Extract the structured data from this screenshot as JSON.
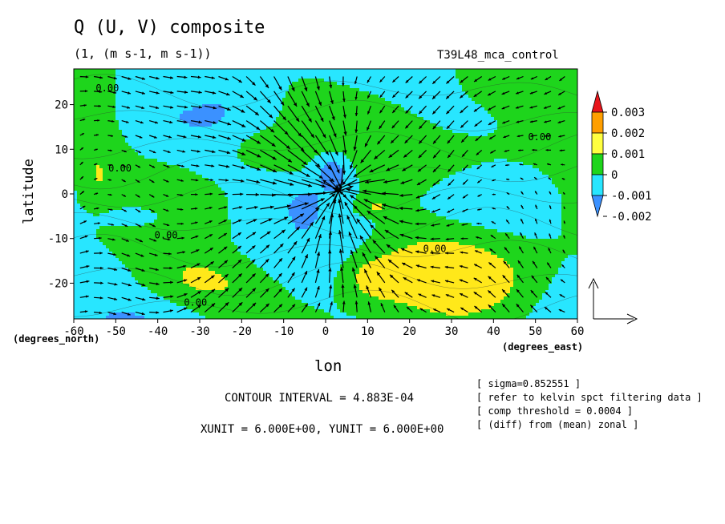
{
  "chart_data": {
    "type": "contour-vector",
    "title": "Q (U, V) composite",
    "subtitle": "(1, (m s-1, m s-1))",
    "run_label": "T39L48_mca_control",
    "xlabel": "lon",
    "ylabel": "latitude",
    "x_units_label": "(degrees_east)",
    "y_units_label": "(degrees_north)",
    "xlim": [
      -60,
      60
    ],
    "ylim": [
      -28,
      28
    ],
    "x_ticks": [
      "-60",
      "-50",
      "-40",
      "-30",
      "-20",
      "-10",
      "0",
      "10",
      "20",
      "30",
      "40",
      "50",
      "60"
    ],
    "x_tick_values": [
      -60,
      -50,
      -40,
      -30,
      -20,
      -10,
      0,
      10,
      20,
      30,
      40,
      50,
      60
    ],
    "y_ticks": [
      "20",
      "10",
      "0",
      "-10",
      "-20"
    ],
    "y_tick_values": [
      20,
      10,
      0,
      -10,
      -20
    ],
    "contour_labels": [
      {
        "text": "0.00",
        "x": -52,
        "y": 23
      },
      {
        "text": "0.00",
        "x": -49,
        "y": 5
      },
      {
        "text": "0.00",
        "x": -38,
        "y": -10
      },
      {
        "text": "0.00",
        "x": -31,
        "y": -25
      },
      {
        "text": "0.00",
        "x": 26,
        "y": -13
      },
      {
        "text": "0.00",
        "x": 51,
        "y": 12
      }
    ],
    "colorbar": {
      "levels": [
        "0.003",
        "0.002",
        "0.001",
        "0",
        "-0.001",
        "-0.002"
      ],
      "colors": [
        "#e8151b",
        "#ff9f00",
        "#ffff40",
        "#1ed51c",
        "#28e6ff",
        "#3b91ff"
      ]
    },
    "regions": {
      "background_color": "#28e6ff",
      "positive_color": "#1ed51c",
      "strong_positive_color": "#ffe81a",
      "negative_color": "#3b91ff"
    },
    "contour_interval": "CONTOUR INTERVAL = 4.883E-04",
    "unit_vectors": "XUNIT = 6.000E+00, YUNIT = 6.000E+00",
    "notes": [
      "[ sigma=0.852551 ]",
      "[ refer to kelvin spct filtering data ]",
      "[ comp threshold = 0.0004 ]",
      "[ (diff) from (mean) zonal ]"
    ]
  }
}
